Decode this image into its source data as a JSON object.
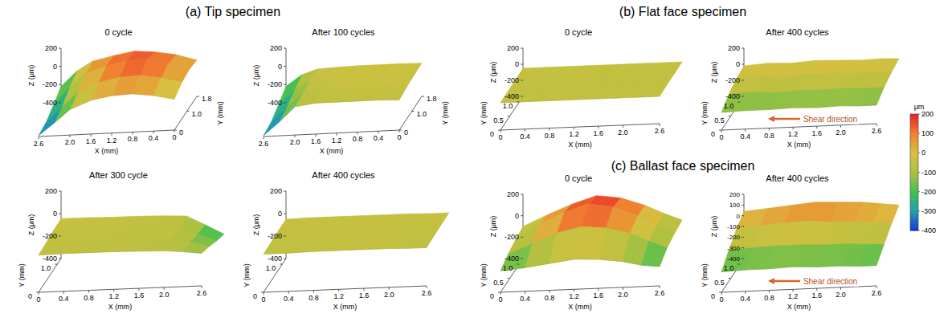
{
  "chart_data": [
    {
      "type": "surface",
      "title": "0 cycle",
      "x_label": "X (mm)",
      "y_label": "Y (mm)",
      "z_label": "Z (μm)",
      "xlim": [
        2.6,
        0
      ],
      "ylim": [
        0,
        1.8
      ],
      "zlim": [
        -400,
        200
      ],
      "xticks": [
        0,
        0.4,
        0.8,
        1.2,
        1.6,
        {
          "value": 2,
          "label": "2.0"
        },
        2.6
      ],
      "yticks": [
        0,
        {
          "value": 1,
          "label": "1.0"
        },
        1.8
      ],
      "zticks": [
        -400,
        -200,
        0,
        200
      ],
      "x": [
        0,
        0.4,
        0.8,
        1.2,
        1.6,
        2.0,
        2.3,
        2.6
      ],
      "y": [
        0,
        0.6,
        1.2,
        1.8
      ],
      "z": [
        [
          -60,
          -10,
          20,
          10,
          -30,
          -120,
          -260,
          -390
        ],
        [
          0,
          60,
          100,
          90,
          40,
          -60,
          -210,
          -370
        ],
        [
          20,
          100,
          160,
          150,
          100,
          20,
          -120,
          -300
        ],
        [
          0,
          70,
          110,
          130,
          90,
          40,
          -60,
          -220
        ]
      ],
      "grid": false
    },
    {
      "type": "surface",
      "title": "After 100 cycles",
      "x_label": "X (mm)",
      "y_label": "Y (mm)",
      "z_label": "Z (μm)",
      "xlim": [
        2.6,
        0
      ],
      "ylim": [
        0,
        1.8
      ],
      "zlim": [
        -400,
        200
      ],
      "xticks": [
        0,
        0.4,
        0.8,
        1.2,
        1.6,
        {
          "value": 2,
          "label": "2.0"
        },
        2.6
      ],
      "yticks": [
        0,
        {
          "value": 1,
          "label": "1.0"
        },
        1.8
      ],
      "zticks": [
        -400,
        -200,
        0,
        200
      ],
      "x": [
        0,
        0.4,
        0.8,
        1.2,
        1.6,
        2.0,
        2.3,
        2.6
      ],
      "y": [
        0,
        0.6,
        1.2,
        1.8
      ],
      "z": [
        [
          -70,
          -60,
          -60,
          -60,
          -60,
          -90,
          -250,
          -390
        ],
        [
          -50,
          -45,
          -45,
          -45,
          -50,
          -70,
          -210,
          -370
        ],
        [
          -40,
          -35,
          -35,
          -35,
          -40,
          -55,
          -150,
          -300
        ],
        [
          -35,
          -30,
          -30,
          -30,
          -35,
          -45,
          -100,
          -220
        ]
      ],
      "grid": false
    },
    {
      "type": "surface",
      "title": "After 300 cycle",
      "x_label": "X (mm)",
      "y_label": "Y (mm)",
      "z_label": "Z (μm)",
      "xlim": [
        0,
        2.6
      ],
      "ylim": [
        0,
        1.2
      ],
      "zlim": [
        -400,
        200
      ],
      "xticks": [
        0,
        0.4,
        0.8,
        1.2,
        1.6,
        {
          "value": 2,
          "label": "2.0"
        },
        2.6
      ],
      "yticks": [
        0,
        {
          "value": 1,
          "label": "1.0"
        }
      ],
      "zticks": [
        -400,
        -200,
        0,
        200
      ],
      "x": [
        0,
        0.4,
        0.8,
        1.2,
        1.6,
        2.0,
        2.3,
        2.6
      ],
      "y": [
        0,
        0.4,
        0.8,
        1.2
      ],
      "z": [
        [
          -70,
          -65,
          -65,
          -65,
          -70,
          -75,
          -90,
          -110
        ],
        [
          -60,
          -60,
          -60,
          -60,
          -65,
          -70,
          -100,
          -150
        ],
        [
          -50,
          -50,
          -50,
          -55,
          -60,
          -70,
          -130,
          -200
        ],
        [
          -45,
          -45,
          -50,
          -50,
          -55,
          -65,
          -150,
          -240
        ]
      ],
      "grid": false
    },
    {
      "type": "surface",
      "title": "After 400 cycles",
      "x_label": "X (mm)",
      "y_label": "Y (mm)",
      "z_label": "Z (μm)",
      "xlim": [
        0,
        2.6
      ],
      "ylim": [
        0,
        1.2
      ],
      "zlim": [
        -400,
        200
      ],
      "xticks": [
        0,
        0.4,
        0.8,
        1.2,
        1.6,
        {
          "value": 2,
          "label": "2.0"
        },
        2.6
      ],
      "yticks": [
        0,
        {
          "value": 1,
          "label": "1.0"
        }
      ],
      "zticks": [
        -400,
        -200,
        0,
        200
      ],
      "x": [
        0,
        0.4,
        0.8,
        1.2,
        1.6,
        2.0,
        2.3,
        2.6
      ],
      "y": [
        0,
        0.4,
        0.8,
        1.2
      ],
      "z": [
        [
          -60,
          -60,
          -55,
          -55,
          -55,
          -55,
          -60,
          -60
        ],
        [
          -55,
          -50,
          -50,
          -50,
          -50,
          -50,
          -55,
          -55
        ],
        [
          -50,
          -50,
          -45,
          -45,
          -45,
          -50,
          -50,
          -50
        ],
        [
          -50,
          -45,
          -45,
          -45,
          -45,
          -45,
          -50,
          -50
        ]
      ],
      "grid": false
    },
    {
      "type": "surface",
      "title": "0 cycle",
      "x_label": "X (mm)",
      "y_label": "Y (mm)",
      "z_label": "Z (μm)",
      "xlim": [
        0,
        2.6
      ],
      "ylim": [
        0,
        1.2
      ],
      "zlim": [
        -400,
        200
      ],
      "xticks": [
        0,
        0.4,
        0.8,
        1.2,
        1.6,
        {
          "value": 2,
          "label": "2.0"
        },
        2.6
      ],
      "yticks": [
        0,
        0.5,
        {
          "value": 1,
          "label": "1.0"
        }
      ],
      "zticks": [
        -400,
        -200,
        0,
        200
      ],
      "x": [
        0,
        0.4,
        0.8,
        1.2,
        1.6,
        2.0,
        2.3,
        2.6
      ],
      "y": [
        0,
        0.4,
        0.8,
        1.2
      ],
      "z": [
        [
          -60,
          -60,
          -60,
          -60,
          -60,
          -60,
          -60,
          -60
        ],
        [
          -55,
          -60,
          -55,
          -55,
          -60,
          -55,
          -55,
          -55
        ],
        [
          -55,
          -55,
          -50,
          -55,
          -55,
          -50,
          -55,
          -55
        ],
        [
          -50,
          -50,
          -50,
          -50,
          -50,
          -50,
          -50,
          -50
        ]
      ],
      "grid": false
    },
    {
      "type": "surface",
      "title": "After 400 cycles",
      "x_label": "X (mm)",
      "y_label": "Y (mm)",
      "z_label": "Z (μm)",
      "xlim": [
        0,
        2.6
      ],
      "ylim": [
        0,
        1.2
      ],
      "zlim": [
        -400,
        200
      ],
      "xticks": [
        0,
        0.4,
        0.8,
        1.2,
        1.6,
        {
          "value": 2,
          "label": "2.0"
        },
        2.6
      ],
      "yticks": [
        0,
        0.5,
        {
          "value": 1,
          "label": "1.0"
        }
      ],
      "zticks": [
        -400,
        -200,
        0,
        200
      ],
      "x": [
        0,
        0.4,
        0.8,
        1.2,
        1.6,
        2.0,
        2.3,
        2.6
      ],
      "y": [
        0,
        0.4,
        0.8,
        1.2
      ],
      "z": [
        [
          -180,
          -170,
          -170,
          -160,
          -170,
          -160,
          -170,
          -170
        ],
        [
          -90,
          -80,
          -100,
          -80,
          -90,
          -80,
          -90,
          -90
        ],
        [
          -40,
          -20,
          -50,
          -30,
          -20,
          -40,
          -30,
          -40
        ],
        [
          -20,
          0,
          -10,
          10,
          0,
          -10,
          0,
          -10
        ]
      ],
      "annotations": [
        "Shear direction"
      ],
      "grid": false
    },
    {
      "type": "surface",
      "title": "0 cycle",
      "x_label": "X (mm)",
      "y_label": "Y (mm)",
      "z_label": "Z (μm)",
      "xlim": [
        0,
        2.6
      ],
      "ylim": [
        0,
        1.2
      ],
      "zlim": [
        -400,
        200
      ],
      "xticks": [
        0,
        0.4,
        0.8,
        1.2,
        1.6,
        {
          "value": 2,
          "label": "2.0"
        },
        2.6
      ],
      "yticks": [
        0,
        0.5,
        {
          "value": 1,
          "label": "1.0"
        }
      ],
      "zticks": [
        -400,
        -200,
        0,
        200
      ],
      "x": [
        0,
        0.4,
        0.8,
        1.2,
        1.6,
        2.0,
        2.3,
        2.6
      ],
      "y": [
        0,
        0.4,
        0.8,
        1.2
      ],
      "z": [
        [
          -200,
          -180,
          -150,
          -120,
          -130,
          -160,
          -200,
          -220
        ],
        [
          -150,
          -60,
          30,
          80,
          60,
          0,
          -80,
          -150
        ],
        [
          -120,
          20,
          120,
          190,
          150,
          60,
          -40,
          -120
        ],
        [
          -100,
          0,
          90,
          160,
          130,
          50,
          -30,
          -100
        ]
      ],
      "grid": false
    },
    {
      "type": "surface",
      "title": "After 400 cycles",
      "x_label": "X (mm)",
      "y_label": "Y (mm)",
      "z_label": "Z (μm)",
      "xlim": [
        0,
        2.6
      ],
      "ylim": [
        0,
        1.2
      ],
      "zlim": [
        -400,
        200
      ],
      "xticks": [
        0,
        0.4,
        0.8,
        1.2,
        1.6,
        {
          "value": 2,
          "label": "2.0"
        },
        2.6
      ],
      "yticks": [
        0,
        0.5,
        {
          "value": 1,
          "label": "1.0"
        }
      ],
      "zticks": [
        -400,
        -300,
        -200,
        -100,
        0,
        100,
        200
      ],
      "x": [
        0,
        0.4,
        0.8,
        1.2,
        1.6,
        2.0,
        2.3,
        2.6
      ],
      "y": [
        0,
        0.4,
        0.8,
        1.2
      ],
      "z": [
        [
          -210,
          -200,
          -200,
          -190,
          -200,
          -200,
          -210,
          -210
        ],
        [
          -110,
          -100,
          -90,
          -90,
          -100,
          -100,
          -110,
          -120
        ],
        [
          -20,
          0,
          20,
          30,
          10,
          0,
          -10,
          -30
        ],
        [
          40,
          60,
          80,
          100,
          90,
          80,
          60,
          40
        ]
      ],
      "annotations": [
        "Shear direction"
      ],
      "grid": false
    }
  ],
  "headings": [
    "(a) Tip specimen",
    "(b) Flat face specimen",
    "(c) Ballast face specimen"
  ],
  "color_bar": {
    "title": "μm",
    "range": [
      -400,
      200
    ],
    "ticks": [
      200,
      100,
      0,
      -100,
      -200,
      -300,
      -400
    ]
  }
}
